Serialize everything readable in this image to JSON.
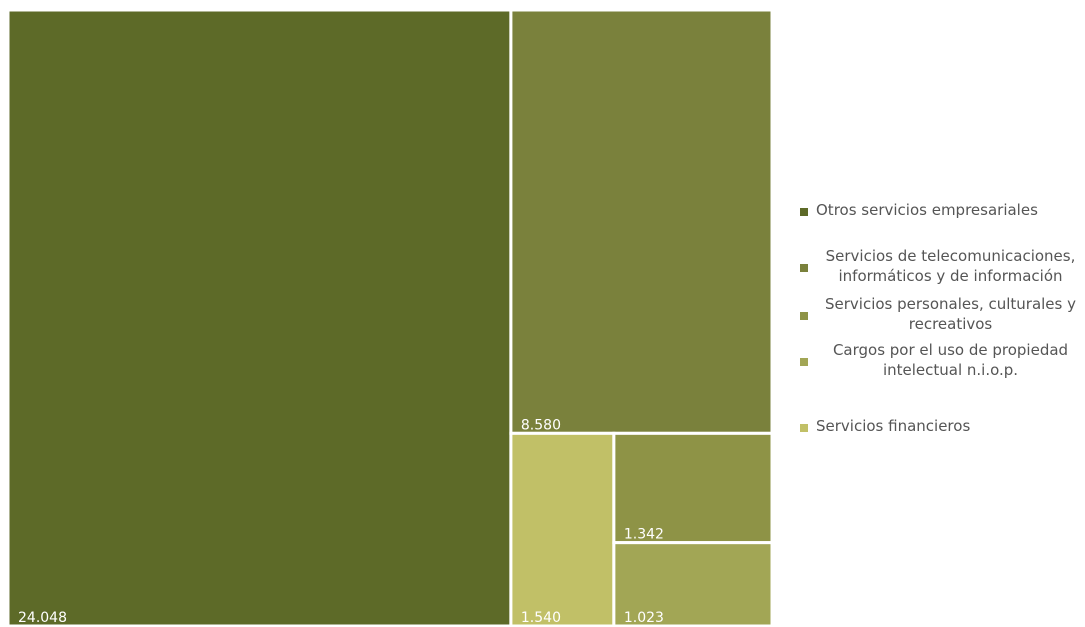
{
  "chart_data": {
    "type": "treemap",
    "title": "",
    "items": [
      {
        "name": "Otros servicios empresariales",
        "value": 24048,
        "label": "24.048",
        "color": "#5d6a28"
      },
      {
        "name": "Servicios de telecomunicaciones, informáticos y de información",
        "value": 8580,
        "label": "8.580",
        "color": "#7a813c"
      },
      {
        "name": "Servicios personales, culturales y recreativos",
        "value": 1342,
        "label": "1.342",
        "color": "#8e9346"
      },
      {
        "name": "Cargos por el uso de propiedad intelectual n.i.o.p.",
        "value": 1023,
        "label": "1.023",
        "color": "#a2a655"
      },
      {
        "name": "Servicios financieros",
        "value": 1540,
        "label": "1.540",
        "color": "#c1c067"
      }
    ],
    "legend": {
      "position": "right",
      "entries": [
        {
          "label": "Otros servicios empresariales",
          "color": "#5d6a28"
        },
        {
          "label": "Servicios de telecomunicaciones, informáticos y de información",
          "color": "#7a813c"
        },
        {
          "label": "Servicios personales, culturales y recreativos",
          "color": "#8e9346"
        },
        {
          "label": "Cargos por el uso de propiedad intelectual n.i.o.p.",
          "color": "#a2a655"
        },
        {
          "label": "Servicios financieros",
          "color": "#c1c067"
        }
      ]
    }
  }
}
